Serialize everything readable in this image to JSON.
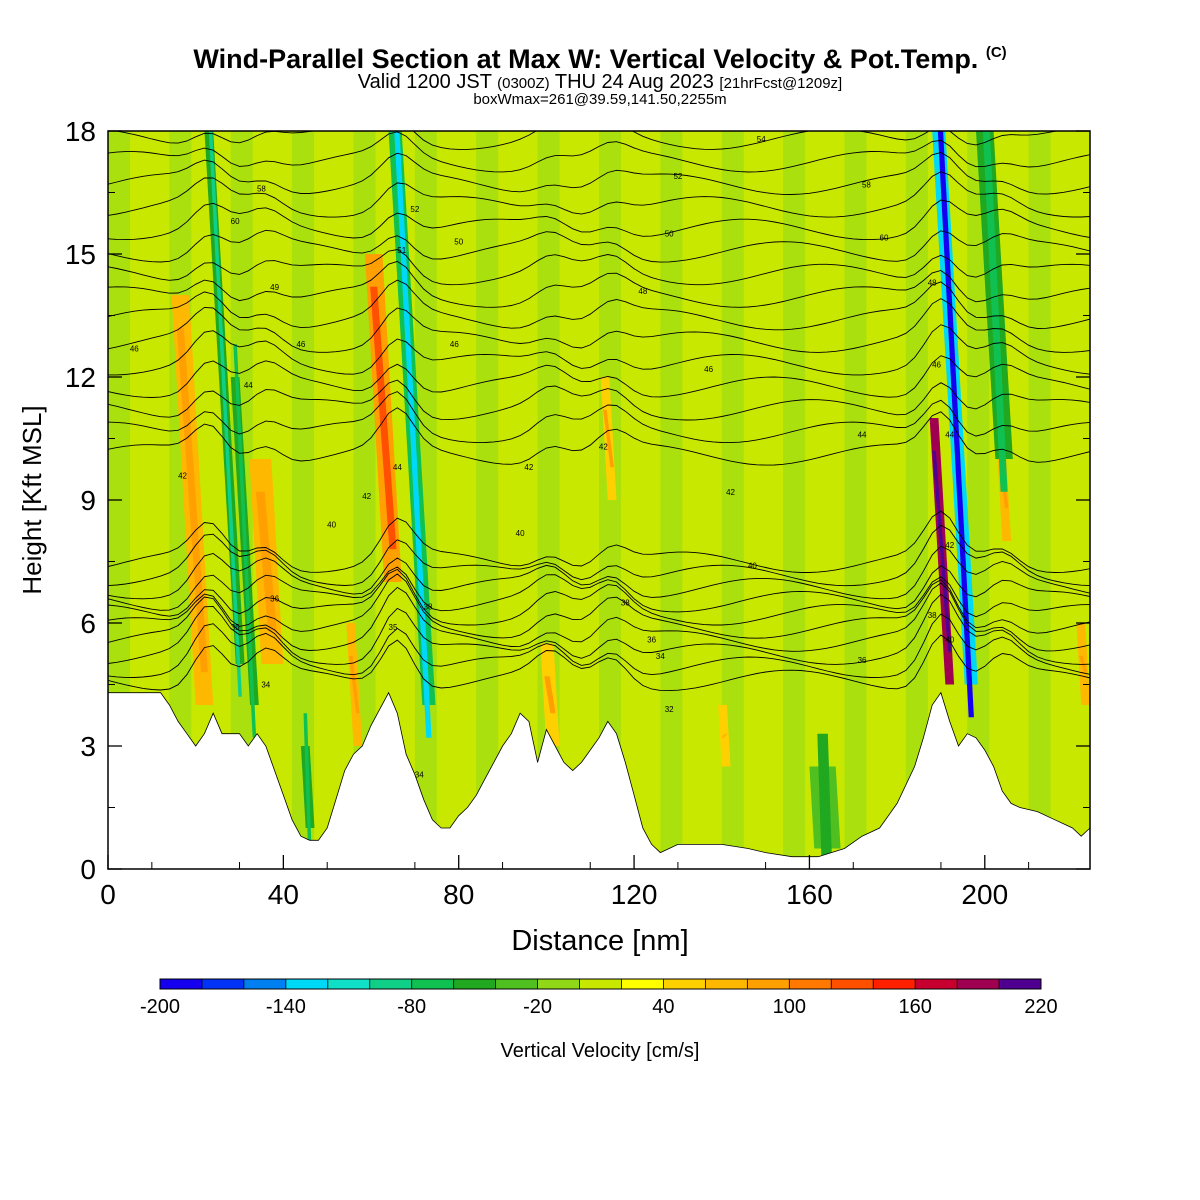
{
  "title": {
    "main": "Wind-Parallel Section at Max W: Vertical Velocity & Pot.Temp.",
    "copyright": "(C)",
    "valid_prefix": "Valid 1200 JST",
    "valid_utc": "(0300Z)",
    "valid_date": "THU 24 Aug 2023",
    "forecast": "[21hrFcst@1209z]",
    "boxwmax": "boxWmax=261@39.59,141.50,2255m"
  },
  "chart_data": {
    "type": "heatmap",
    "xlabel": "Distance [nm]",
    "ylabel": "Height [Kft MSL]",
    "xlim": [
      0,
      224
    ],
    "ylim": [
      0,
      18
    ],
    "x_ticks": [
      0,
      40,
      80,
      120,
      160,
      200
    ],
    "y_ticks": [
      0,
      3,
      6,
      9,
      12,
      15,
      18
    ],
    "colorbar": {
      "label": "Vertical Velocity [cm/s]",
      "min": -200,
      "max": 220,
      "step": 20,
      "tick_labels": [
        -200,
        -140,
        -80,
        -20,
        40,
        100,
        160,
        220
      ],
      "colors": [
        "#1500f0",
        "#0032f8",
        "#0080f0",
        "#00d8f8",
        "#10e0c8",
        "#10d088",
        "#10c050",
        "#20a820",
        "#50c020",
        "#90d818",
        "#c8e800",
        "#ffff00",
        "#ffd000",
        "#ffb800",
        "#ffa000",
        "#ff7800",
        "#ff5000",
        "#ff2000",
        "#c80030",
        "#a00050",
        "#500090"
      ]
    },
    "terrain": [
      {
        "x": 0,
        "h": 4.3
      },
      {
        "x": 12,
        "h": 4.3
      },
      {
        "x": 14,
        "h": 4.0
      },
      {
        "x": 16,
        "h": 3.6
      },
      {
        "x": 18,
        "h": 3.3
      },
      {
        "x": 20,
        "h": 3.0
      },
      {
        "x": 22,
        "h": 3.3
      },
      {
        "x": 24,
        "h": 3.8
      },
      {
        "x": 26,
        "h": 3.3
      },
      {
        "x": 28,
        "h": 3.3
      },
      {
        "x": 30,
        "h": 3.3
      },
      {
        "x": 32,
        "h": 3.0
      },
      {
        "x": 34,
        "h": 3.3
      },
      {
        "x": 36,
        "h": 3.0
      },
      {
        "x": 38,
        "h": 2.4
      },
      {
        "x": 40,
        "h": 1.8
      },
      {
        "x": 42,
        "h": 1.2
      },
      {
        "x": 44,
        "h": 0.8
      },
      {
        "x": 46,
        "h": 0.7
      },
      {
        "x": 48,
        "h": 0.7
      },
      {
        "x": 50,
        "h": 1.0
      },
      {
        "x": 52,
        "h": 1.7
      },
      {
        "x": 54,
        "h": 2.4
      },
      {
        "x": 56,
        "h": 2.8
      },
      {
        "x": 58,
        "h": 3.0
      },
      {
        "x": 60,
        "h": 3.5
      },
      {
        "x": 62,
        "h": 3.9
      },
      {
        "x": 64,
        "h": 4.3
      },
      {
        "x": 66,
        "h": 3.8
      },
      {
        "x": 68,
        "h": 2.8
      },
      {
        "x": 70,
        "h": 2.3
      },
      {
        "x": 72,
        "h": 1.7
      },
      {
        "x": 74,
        "h": 1.2
      },
      {
        "x": 76,
        "h": 1.0
      },
      {
        "x": 78,
        "h": 1.0
      },
      {
        "x": 80,
        "h": 1.3
      },
      {
        "x": 82,
        "h": 1.5
      },
      {
        "x": 84,
        "h": 1.8
      },
      {
        "x": 86,
        "h": 2.2
      },
      {
        "x": 88,
        "h": 2.6
      },
      {
        "x": 90,
        "h": 3.0
      },
      {
        "x": 92,
        "h": 3.3
      },
      {
        "x": 94,
        "h": 3.8
      },
      {
        "x": 96,
        "h": 3.6
      },
      {
        "x": 98,
        "h": 2.6
      },
      {
        "x": 100,
        "h": 3.4
      },
      {
        "x": 102,
        "h": 3.0
      },
      {
        "x": 104,
        "h": 2.6
      },
      {
        "x": 106,
        "h": 2.4
      },
      {
        "x": 108,
        "h": 2.6
      },
      {
        "x": 110,
        "h": 2.9
      },
      {
        "x": 112,
        "h": 3.2
      },
      {
        "x": 114,
        "h": 3.6
      },
      {
        "x": 116,
        "h": 3.3
      },
      {
        "x": 118,
        "h": 2.6
      },
      {
        "x": 120,
        "h": 1.8
      },
      {
        "x": 122,
        "h": 1.0
      },
      {
        "x": 124,
        "h": 0.6
      },
      {
        "x": 126,
        "h": 0.4
      },
      {
        "x": 130,
        "h": 0.6
      },
      {
        "x": 134,
        "h": 0.6
      },
      {
        "x": 140,
        "h": 0.6
      },
      {
        "x": 146,
        "h": 0.5
      },
      {
        "x": 150,
        "h": 0.4
      },
      {
        "x": 156,
        "h": 0.3
      },
      {
        "x": 162,
        "h": 0.3
      },
      {
        "x": 168,
        "h": 0.5
      },
      {
        "x": 172,
        "h": 0.8
      },
      {
        "x": 176,
        "h": 1.0
      },
      {
        "x": 180,
        "h": 1.6
      },
      {
        "x": 184,
        "h": 2.5
      },
      {
        "x": 186,
        "h": 3.2
      },
      {
        "x": 188,
        "h": 4.0
      },
      {
        "x": 190,
        "h": 4.3
      },
      {
        "x": 192,
        "h": 3.6
      },
      {
        "x": 194,
        "h": 3.0
      },
      {
        "x": 196,
        "h": 3.3
      },
      {
        "x": 198,
        "h": 3.2
      },
      {
        "x": 200,
        "h": 2.9
      },
      {
        "x": 202,
        "h": 2.5
      },
      {
        "x": 204,
        "h": 1.9
      },
      {
        "x": 206,
        "h": 1.6
      },
      {
        "x": 208,
        "h": 1.5
      },
      {
        "x": 212,
        "h": 1.4
      },
      {
        "x": 216,
        "h": 1.2
      },
      {
        "x": 218,
        "h": 1.1
      },
      {
        "x": 220,
        "h": 1.0
      },
      {
        "x": 222,
        "h": 0.8
      },
      {
        "x": 224,
        "h": 1.0
      }
    ],
    "updraft_cells": [
      {
        "x0": 20,
        "x1": 24,
        "h0": 4,
        "h1": 14,
        "w": 60
      },
      {
        "x0": 35,
        "x1": 40,
        "h0": 5,
        "h1": 10,
        "w": 60
      },
      {
        "x0": 63,
        "x1": 67,
        "h0": 7,
        "h1": 15,
        "w": 80
      },
      {
        "x0": 56,
        "x1": 58,
        "h0": 3,
        "h1": 6,
        "w": 60
      },
      {
        "x0": 100,
        "x1": 103,
        "h0": 3,
        "h1": 5.5,
        "w": 50
      },
      {
        "x0": 114,
        "x1": 116,
        "h0": 9,
        "h1": 12,
        "w": 50
      },
      {
        "x0": 140,
        "x1": 142,
        "h0": 2.5,
        "h1": 4,
        "w": 40
      },
      {
        "x0": 191,
        "x1": 193,
        "h0": 4.5,
        "h1": 11,
        "w": 180
      },
      {
        "x0": 204,
        "x1": 206,
        "h0": 8,
        "h1": 11,
        "w": 60
      },
      {
        "x0": 222,
        "x1": 224,
        "h0": 4,
        "h1": 6,
        "w": 60
      }
    ],
    "downdraft_cells": [
      {
        "x0": 22,
        "x1": 24,
        "h0": 18,
        "h1": 5,
        "w": -60
      },
      {
        "x0": 28,
        "x1": 30,
        "h0": 12,
        "h1": 4,
        "w": -50
      },
      {
        "x0": 64,
        "x1": 67,
        "h0": 18,
        "h1": 4,
        "w": -80
      },
      {
        "x0": 44,
        "x1": 46,
        "h0": 3,
        "h1": 1,
        "w": -50
      },
      {
        "x0": 160,
        "x1": 166,
        "h0": 2.5,
        "h1": 0.5,
        "w": -30
      },
      {
        "x0": 188,
        "x1": 191,
        "h0": 18,
        "h1": 4.5,
        "w": -140
      },
      {
        "x0": 198,
        "x1": 202,
        "h0": 18,
        "h1": 10,
        "w": -50
      }
    ],
    "theta_contours": {
      "units": "K",
      "labels": [
        {
          "x": 6,
          "y": 12.7,
          "v": "46"
        },
        {
          "x": 17,
          "y": 9.6,
          "v": "42"
        },
        {
          "x": 29,
          "y": 15.8,
          "v": "60"
        },
        {
          "x": 35,
          "y": 16.6,
          "v": "58"
        },
        {
          "x": 38,
          "y": 14.2,
          "v": "49"
        },
        {
          "x": 44,
          "y": 12.8,
          "v": "46"
        },
        {
          "x": 32,
          "y": 11.8,
          "v": "44"
        },
        {
          "x": 51,
          "y": 8.4,
          "v": "40"
        },
        {
          "x": 59,
          "y": 9.1,
          "v": "42"
        },
        {
          "x": 38,
          "y": 6.6,
          "v": "36"
        },
        {
          "x": 29,
          "y": 5.9,
          "v": "35"
        },
        {
          "x": 36,
          "y": 4.5,
          "v": "34"
        },
        {
          "x": 70,
          "y": 16.1,
          "v": "52"
        },
        {
          "x": 67,
          "y": 15.1,
          "v": "51"
        },
        {
          "x": 79,
          "y": 12.8,
          "v": "46"
        },
        {
          "x": 66,
          "y": 9.8,
          "v": "44"
        },
        {
          "x": 73,
          "y": 6.4,
          "v": "38"
        },
        {
          "x": 65,
          "y": 5.9,
          "v": "35"
        },
        {
          "x": 71,
          "y": 2.3,
          "v": "34"
        },
        {
          "x": 80,
          "y": 15.3,
          "v": "50"
        },
        {
          "x": 96,
          "y": 9.8,
          "v": "42"
        },
        {
          "x": 94,
          "y": 8.2,
          "v": "40"
        },
        {
          "x": 113,
          "y": 10.3,
          "v": "42"
        },
        {
          "x": 118,
          "y": 6.5,
          "v": "38"
        },
        {
          "x": 122,
          "y": 14.1,
          "v": "48"
        },
        {
          "x": 124,
          "y": 5.6,
          "v": "36"
        },
        {
          "x": 126,
          "y": 5.2,
          "v": "34"
        },
        {
          "x": 128,
          "y": 3.9,
          "v": "32"
        },
        {
          "x": 128,
          "y": 15.5,
          "v": "50"
        },
        {
          "x": 130,
          "y": 16.9,
          "v": "52"
        },
        {
          "x": 137,
          "y": 12.2,
          "v": "46"
        },
        {
          "x": 142,
          "y": 9.2,
          "v": "42"
        },
        {
          "x": 147,
          "y": 7.4,
          "v": "40"
        },
        {
          "x": 149,
          "y": 17.8,
          "v": "54"
        },
        {
          "x": 173,
          "y": 16.7,
          "v": "58"
        },
        {
          "x": 172,
          "y": 10.6,
          "v": "44"
        },
        {
          "x": 172,
          "y": 5.1,
          "v": "36"
        },
        {
          "x": 177,
          "y": 15.4,
          "v": "60"
        },
        {
          "x": 188,
          "y": 14.3,
          "v": "48"
        },
        {
          "x": 189,
          "y": 12.3,
          "v": "46"
        },
        {
          "x": 192,
          "y": 10.6,
          "v": "44"
        },
        {
          "x": 192,
          "y": 7.9,
          "v": "42"
        },
        {
          "x": 188,
          "y": 6.2,
          "v": "38"
        },
        {
          "x": 192,
          "y": 5.6,
          "v": "40"
        }
      ]
    }
  }
}
